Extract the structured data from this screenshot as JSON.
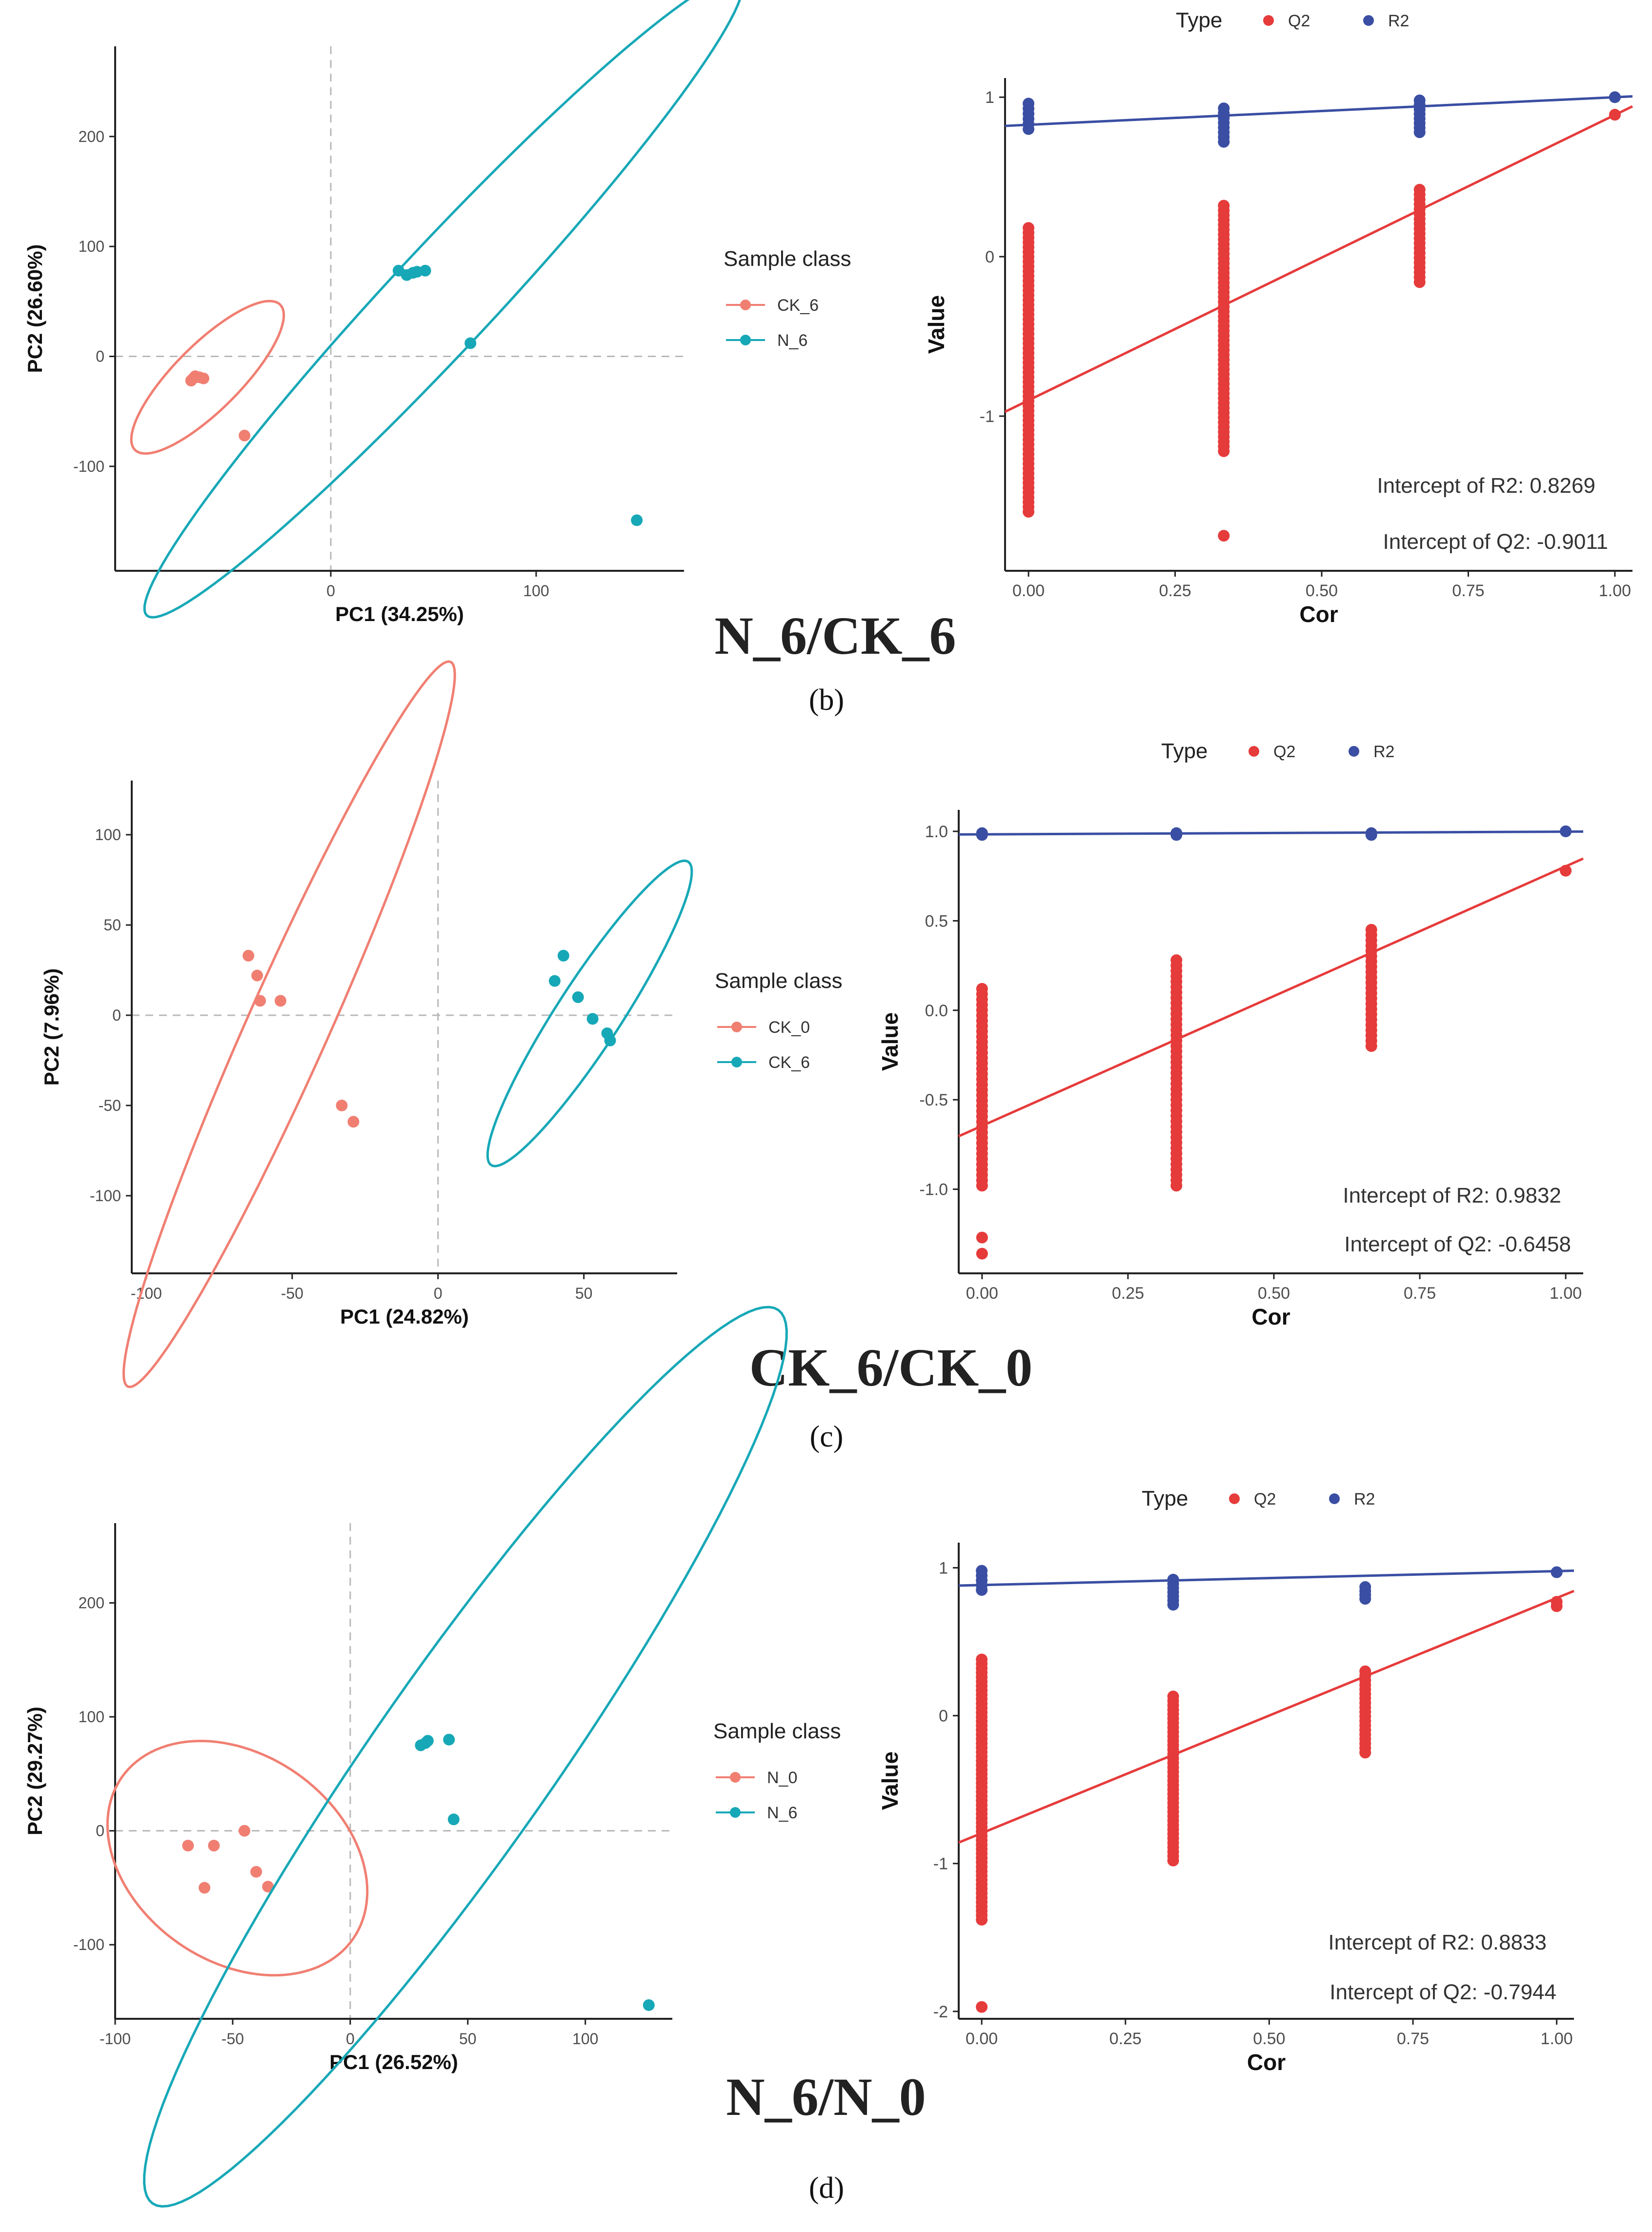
{
  "panels": [
    {
      "title": "N_6/CK_6",
      "caption": "(b)",
      "pca": {
        "type": "scatter",
        "xlabel": "PC1 (34.25%)",
        "ylabel": "PC2 (26.60%)",
        "xlim": [
          -105,
          172
        ],
        "ylim": [
          -195,
          282
        ],
        "xticks": [
          0,
          100
        ],
        "yticks": [
          -100,
          0,
          100,
          200
        ],
        "legend_title": "Sample class",
        "groups": [
          {
            "name": "CK_6",
            "color": "#f07f72",
            "points": [
              [
                -68,
                -22
              ],
              [
                -67,
                -20
              ],
              [
                -66,
                -18
              ],
              [
                -64,
                -19
              ],
              [
                -62,
                -20
              ],
              [
                -42,
                -72
              ]
            ],
            "ellipse": {
              "cx": -60,
              "cy": -19,
              "rx": 50,
              "ry": 16,
              "angle": -45
            }
          },
          {
            "name": "N_6",
            "color": "#17a8b7",
            "points": [
              [
                33,
                78
              ],
              [
                37,
                74
              ],
              [
                40,
                76
              ],
              [
                42,
                77
              ],
              [
                46,
                78
              ],
              [
                68,
                12
              ],
              [
                149,
                -149
              ]
            ],
            "ellipse": {
              "cx": 55,
              "cy": 54,
              "rx": 212,
              "ry": 25,
              "angle": -47
            }
          }
        ]
      },
      "permutation": {
        "type": "scatter",
        "xlabel": "Cor",
        "ylabel": "Value",
        "xlim": [
          -0.04,
          1.03
        ],
        "ylim": [
          -1.97,
          1.12
        ],
        "xticks": [
          "0.00",
          "0.25",
          "0.50",
          "0.75",
          "1.00"
        ],
        "yticks": [
          -1,
          0,
          1
        ],
        "legend_title": "Type",
        "series": [
          {
            "name": "Q2",
            "color": "#e63b3b",
            "points": {
              "x0": {
                "min": -1.6,
                "max": 0.18
              },
              "x033": {
                "min": -1.22,
                "max": 0.32,
                "outliers": [
                  -1.75
                ]
              },
              "x067": {
                "min": -0.16,
                "max": 0.42
              },
              "x1": {
                "min": 0.89,
                "max": 0.89
              }
            },
            "intercept": -0.9011,
            "slope": 1.79
          },
          {
            "name": "R2",
            "color": "#3a4ea3",
            "points": {
              "x0": {
                "min": 0.8,
                "max": 0.96
              },
              "x033": {
                "min": 0.72,
                "max": 0.93
              },
              "x067": {
                "min": 0.78,
                "max": 0.98
              },
              "x1": {
                "min": 1.0,
                "max": 1.0
              }
            },
            "intercept": 0.8269,
            "slope": 0.173
          }
        ],
        "annotations": [
          "Intercept of R2: 0.8269",
          "Intercept of Q2: -0.9011"
        ]
      }
    },
    {
      "title": "CK_6/CK_0",
      "caption": "(c)",
      "pca": {
        "type": "scatter",
        "xlabel": "PC1 (24.82%)",
        "ylabel": "PC2 (7.96%)",
        "xlim": [
          -105,
          82
        ],
        "ylim": [
          -143,
          130
        ],
        "xticks": [
          -100,
          -50,
          0,
          50
        ],
        "yticks": [
          -100,
          -50,
          0,
          50,
          100
        ],
        "legend_title": "Sample class",
        "groups": [
          {
            "name": "CK_0",
            "color": "#f07f72",
            "points": [
              [
                -65,
                33
              ],
              [
                -62,
                22
              ],
              [
                -61,
                8
              ],
              [
                -54,
                8
              ],
              [
                -33,
                -50
              ],
              [
                -29,
                -59
              ]
            ],
            "ellipse": {
              "cx": -51,
              "cy": -5,
              "rx": 136,
              "ry": 14,
              "angle": -66
            }
          },
          {
            "name": "CK_6",
            "color": "#17a8b7",
            "points": [
              [
                43,
                33
              ],
              [
                40,
                19
              ],
              [
                48,
                10
              ],
              [
                53,
                -2
              ],
              [
                58,
                -10
              ],
              [
                59,
                -14
              ]
            ],
            "ellipse": {
              "cx": 52,
              "cy": 1,
              "rx": 62,
              "ry": 11,
              "angle": -57
            }
          }
        ]
      },
      "permutation": {
        "type": "scatter",
        "xlabel": "Cor",
        "ylabel": "Value",
        "xlim": [
          -0.04,
          1.03
        ],
        "ylim": [
          -1.47,
          1.12
        ],
        "xticks": [
          "0.00",
          "0.25",
          "0.50",
          "0.75",
          "1.00"
        ],
        "yticks": [
          "-1.0",
          "-0.5",
          "0.0",
          "0.5",
          "1.0"
        ],
        "legend_title": "Type",
        "series": [
          {
            "name": "Q2",
            "color": "#e63b3b",
            "points": {
              "x0": {
                "min": -0.98,
                "max": 0.12,
                "outliers": [
                  -1.27,
                  -1.36
                ]
              },
              "x033": {
                "min": -0.98,
                "max": 0.28
              },
              "x067": {
                "min": -0.2,
                "max": 0.45
              },
              "x1": {
                "min": 0.78,
                "max": 0.78
              }
            },
            "intercept": -0.6458,
            "slope": 1.45
          },
          {
            "name": "R2",
            "color": "#3a4ea3",
            "points": {
              "x0": {
                "min": 0.98,
                "max": 0.99
              },
              "x033": {
                "min": 0.98,
                "max": 0.99
              },
              "x067": {
                "min": 0.98,
                "max": 0.99
              },
              "x1": {
                "min": 1.0,
                "max": 1.0
              }
            },
            "intercept": 0.9832,
            "slope": 0.015
          }
        ],
        "annotations": [
          "Intercept of R2: 0.9832",
          "Intercept of Q2: -0.6458"
        ]
      }
    },
    {
      "title": "N_6/N_0",
      "caption": "(d)",
      "pca": {
        "type": "scatter",
        "xlabel": "PC1 (26.52%)",
        "ylabel": "PC2 (29.27%)",
        "xlim": [
          -100,
          137
        ],
        "ylim": [
          -165,
          270
        ],
        "xticks": [
          -100,
          -50,
          0,
          50,
          100
        ],
        "yticks": [
          -100,
          0,
          100,
          200
        ],
        "legend_title": "Sample class",
        "groups": [
          {
            "name": "N_0",
            "color": "#f07f72",
            "points": [
              [
                -69,
                -13
              ],
              [
                -58,
                -13
              ],
              [
                -45,
                0
              ],
              [
                -62,
                -50
              ],
              [
                -40,
                -36
              ],
              [
                -35,
                -49
              ]
            ],
            "ellipse": {
              "cx": -48,
              "cy": -24,
              "rx": 44,
              "ry": 60,
              "angle": -55
            }
          },
          {
            "name": "N_6",
            "color": "#17a8b7",
            "points": [
              [
                30,
                75
              ],
              [
                32,
                77
              ],
              [
                33,
                79
              ],
              [
                42,
                80
              ],
              [
                44,
                10
              ],
              [
                127,
                -153
              ]
            ],
            "ellipse": {
              "cx": 49,
              "cy": 65,
              "rx": 232,
              "ry": 38,
              "angle": -55
            }
          }
        ]
      },
      "permutation": {
        "type": "scatter",
        "xlabel": "Cor",
        "ylabel": "Value",
        "xlim": [
          -0.04,
          1.03
        ],
        "ylim": [
          -2.05,
          1.17
        ],
        "xticks": [
          "0.00",
          "0.25",
          "0.50",
          "0.75",
          "1.00"
        ],
        "yticks": [
          -2,
          -1,
          0,
          1
        ],
        "legend_title": "Type",
        "series": [
          {
            "name": "Q2",
            "color": "#e63b3b",
            "points": {
              "x0": {
                "min": -1.38,
                "max": 0.38,
                "outliers": [
                  -1.97
                ]
              },
              "x033": {
                "min": -0.98,
                "max": 0.13
              },
              "x067": {
                "min": -0.25,
                "max": 0.3
              },
              "x1": {
                "min": 0.74,
                "max": 0.77
              }
            },
            "intercept": -0.7944,
            "slope": 1.59
          },
          {
            "name": "R2",
            "color": "#3a4ea3",
            "points": {
              "x0": {
                "min": 0.85,
                "max": 0.98
              },
              "x033": {
                "min": 0.75,
                "max": 0.92
              },
              "x067": {
                "min": 0.79,
                "max": 0.87
              },
              "x1": {
                "min": 0.97,
                "max": 0.97
              }
            },
            "intercept": 0.8833,
            "slope": 0.094
          }
        ],
        "annotations": [
          "Intercept of R2: 0.8833",
          "Intercept of Q2: -0.7944"
        ]
      }
    }
  ]
}
